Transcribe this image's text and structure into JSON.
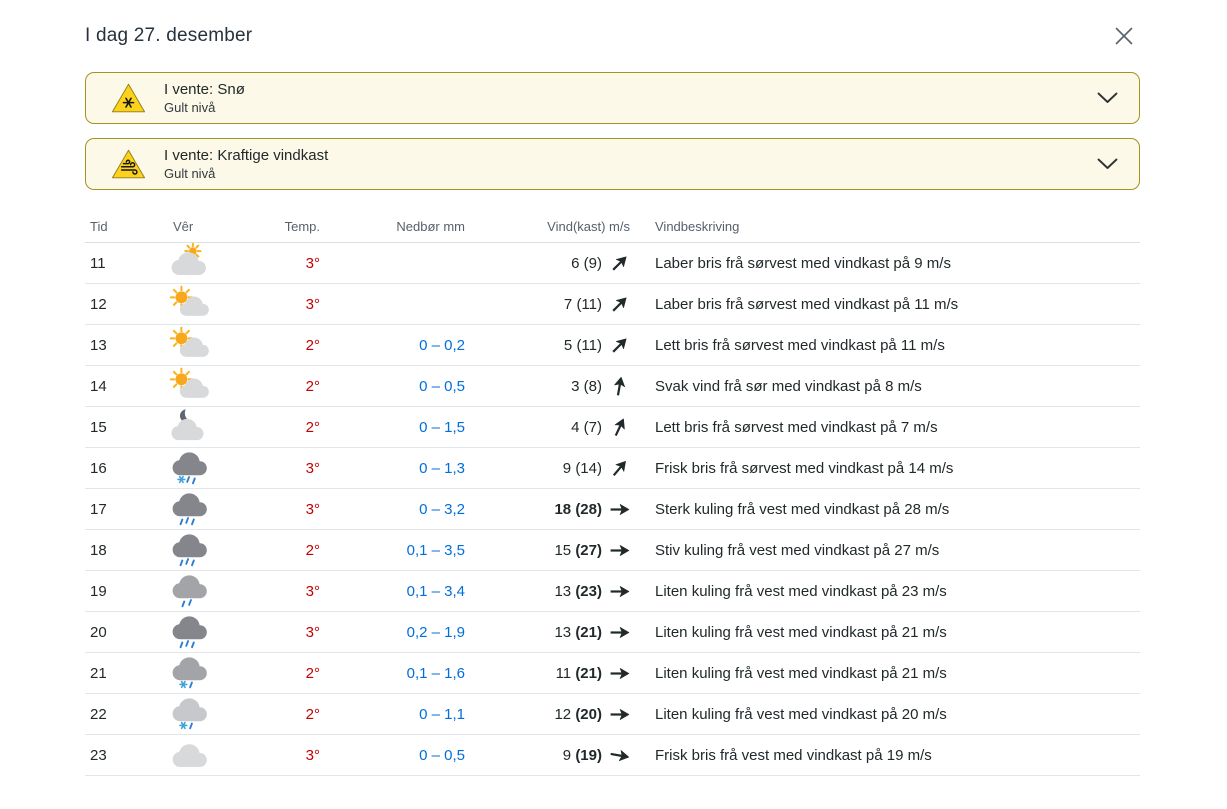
{
  "header": {
    "title": "I dag 27. desember"
  },
  "warnings": [
    {
      "icon": "snow-warning",
      "title": "I vente: Snø",
      "level": "Gult nivå"
    },
    {
      "icon": "wind-warning",
      "title": "I vente: Kraftige vindkast",
      "level": "Gult nivå"
    }
  ],
  "table": {
    "columns": [
      "Tid",
      "Vêr",
      "Temp.",
      "Nedbør mm",
      "Vind(kast) m/s",
      "Vindbeskriving"
    ],
    "rows": [
      {
        "time": "11",
        "icon": "sun-behind-cloud",
        "temp": "3°",
        "precip": "",
        "wind": "6",
        "gust": "(9)",
        "wind_bold": false,
        "gust_bold": false,
        "arrow_deg": 45,
        "desc": "Laber bris frå sørvest med vindkast på 9 m/s"
      },
      {
        "time": "12",
        "icon": "sun-cloud",
        "temp": "3°",
        "precip": "",
        "wind": "7",
        "gust": "(11)",
        "wind_bold": false,
        "gust_bold": false,
        "arrow_deg": 45,
        "desc": "Laber bris frå sørvest med vindkast på 11 m/s"
      },
      {
        "time": "13",
        "icon": "sun-cloud",
        "temp": "2°",
        "precip": "0 – 0,2",
        "wind": "5",
        "gust": "(11)",
        "wind_bold": false,
        "gust_bold": false,
        "arrow_deg": 45,
        "desc": "Lett bris frå sørvest med vindkast på 11 m/s"
      },
      {
        "time": "14",
        "icon": "sun-cloud",
        "temp": "2°",
        "precip": "0 – 0,5",
        "wind": "3",
        "gust": "(8)",
        "wind_bold": false,
        "gust_bold": false,
        "arrow_deg": 10,
        "desc": "Svak vind frå sør med vindkast på 8 m/s"
      },
      {
        "time": "15",
        "icon": "moon-cloud",
        "temp": "2°",
        "precip": "0 – 1,5",
        "wind": "4",
        "gust": "(7)",
        "wind_bold": false,
        "gust_bold": false,
        "arrow_deg": 25,
        "desc": "Lett bris frå sørvest med vindkast på 7 m/s"
      },
      {
        "time": "16",
        "icon": "dark-cloud-sleet",
        "temp": "3°",
        "precip": "0 – 1,3",
        "wind": "9",
        "gust": "(14)",
        "wind_bold": false,
        "gust_bold": false,
        "arrow_deg": 40,
        "desc": "Frisk bris frå sørvest med vindkast på 14 m/s"
      },
      {
        "time": "17",
        "icon": "dark-cloud-rain",
        "temp": "3°",
        "precip": "0 – 3,2",
        "wind": "18",
        "gust": "(28)",
        "wind_bold": true,
        "gust_bold": true,
        "arrow_deg": 90,
        "desc": "Sterk kuling frå vest med vindkast på 28 m/s"
      },
      {
        "time": "18",
        "icon": "dark-cloud-rain",
        "temp": "2°",
        "precip": "0,1 – 3,5",
        "wind": "15",
        "gust": "(27)",
        "wind_bold": false,
        "gust_bold": true,
        "arrow_deg": 90,
        "desc": "Stiv kuling frå vest med vindkast på 27 m/s"
      },
      {
        "time": "19",
        "icon": "cloud-rain",
        "temp": "3°",
        "precip": "0,1 – 3,4",
        "wind": "13",
        "gust": "(23)",
        "wind_bold": false,
        "gust_bold": true,
        "arrow_deg": 90,
        "desc": "Liten kuling frå vest med vindkast på 23 m/s"
      },
      {
        "time": "20",
        "icon": "dark-cloud-rain",
        "temp": "3°",
        "precip": "0,2 – 1,9",
        "wind": "13",
        "gust": "(21)",
        "wind_bold": false,
        "gust_bold": true,
        "arrow_deg": 90,
        "desc": "Liten kuling frå vest med vindkast på 21 m/s"
      },
      {
        "time": "21",
        "icon": "cloud-sleet",
        "temp": "2°",
        "precip": "0,1 – 1,6",
        "wind": "11",
        "gust": "(21)",
        "wind_bold": false,
        "gust_bold": true,
        "arrow_deg": 90,
        "desc": "Liten kuling frå vest med vindkast på 21 m/s"
      },
      {
        "time": "22",
        "icon": "light-cloud-sleet",
        "temp": "2°",
        "precip": "0 – 1,1",
        "wind": "12",
        "gust": "(20)",
        "wind_bold": false,
        "gust_bold": true,
        "arrow_deg": 90,
        "desc": "Liten kuling frå vest med vindkast på 20 m/s"
      },
      {
        "time": "23",
        "icon": "light-cloud",
        "temp": "3°",
        "precip": "0 – 0,5",
        "wind": "9",
        "gust": "(19)",
        "wind_bold": false,
        "gust_bold": true,
        "arrow_deg": 100,
        "desc": "Frisk bris frå vest med vindkast på 19 m/s"
      }
    ]
  },
  "colors": {
    "temp_red": "#c60000",
    "precip_blue": "#006edb",
    "warning_bg": "#fdf9e8",
    "warning_border": "#a39420",
    "warning_yellow": "#fcd21c",
    "row_border": "#e1e6ec",
    "header_text": "#56616c",
    "body_text": "#21292b"
  }
}
